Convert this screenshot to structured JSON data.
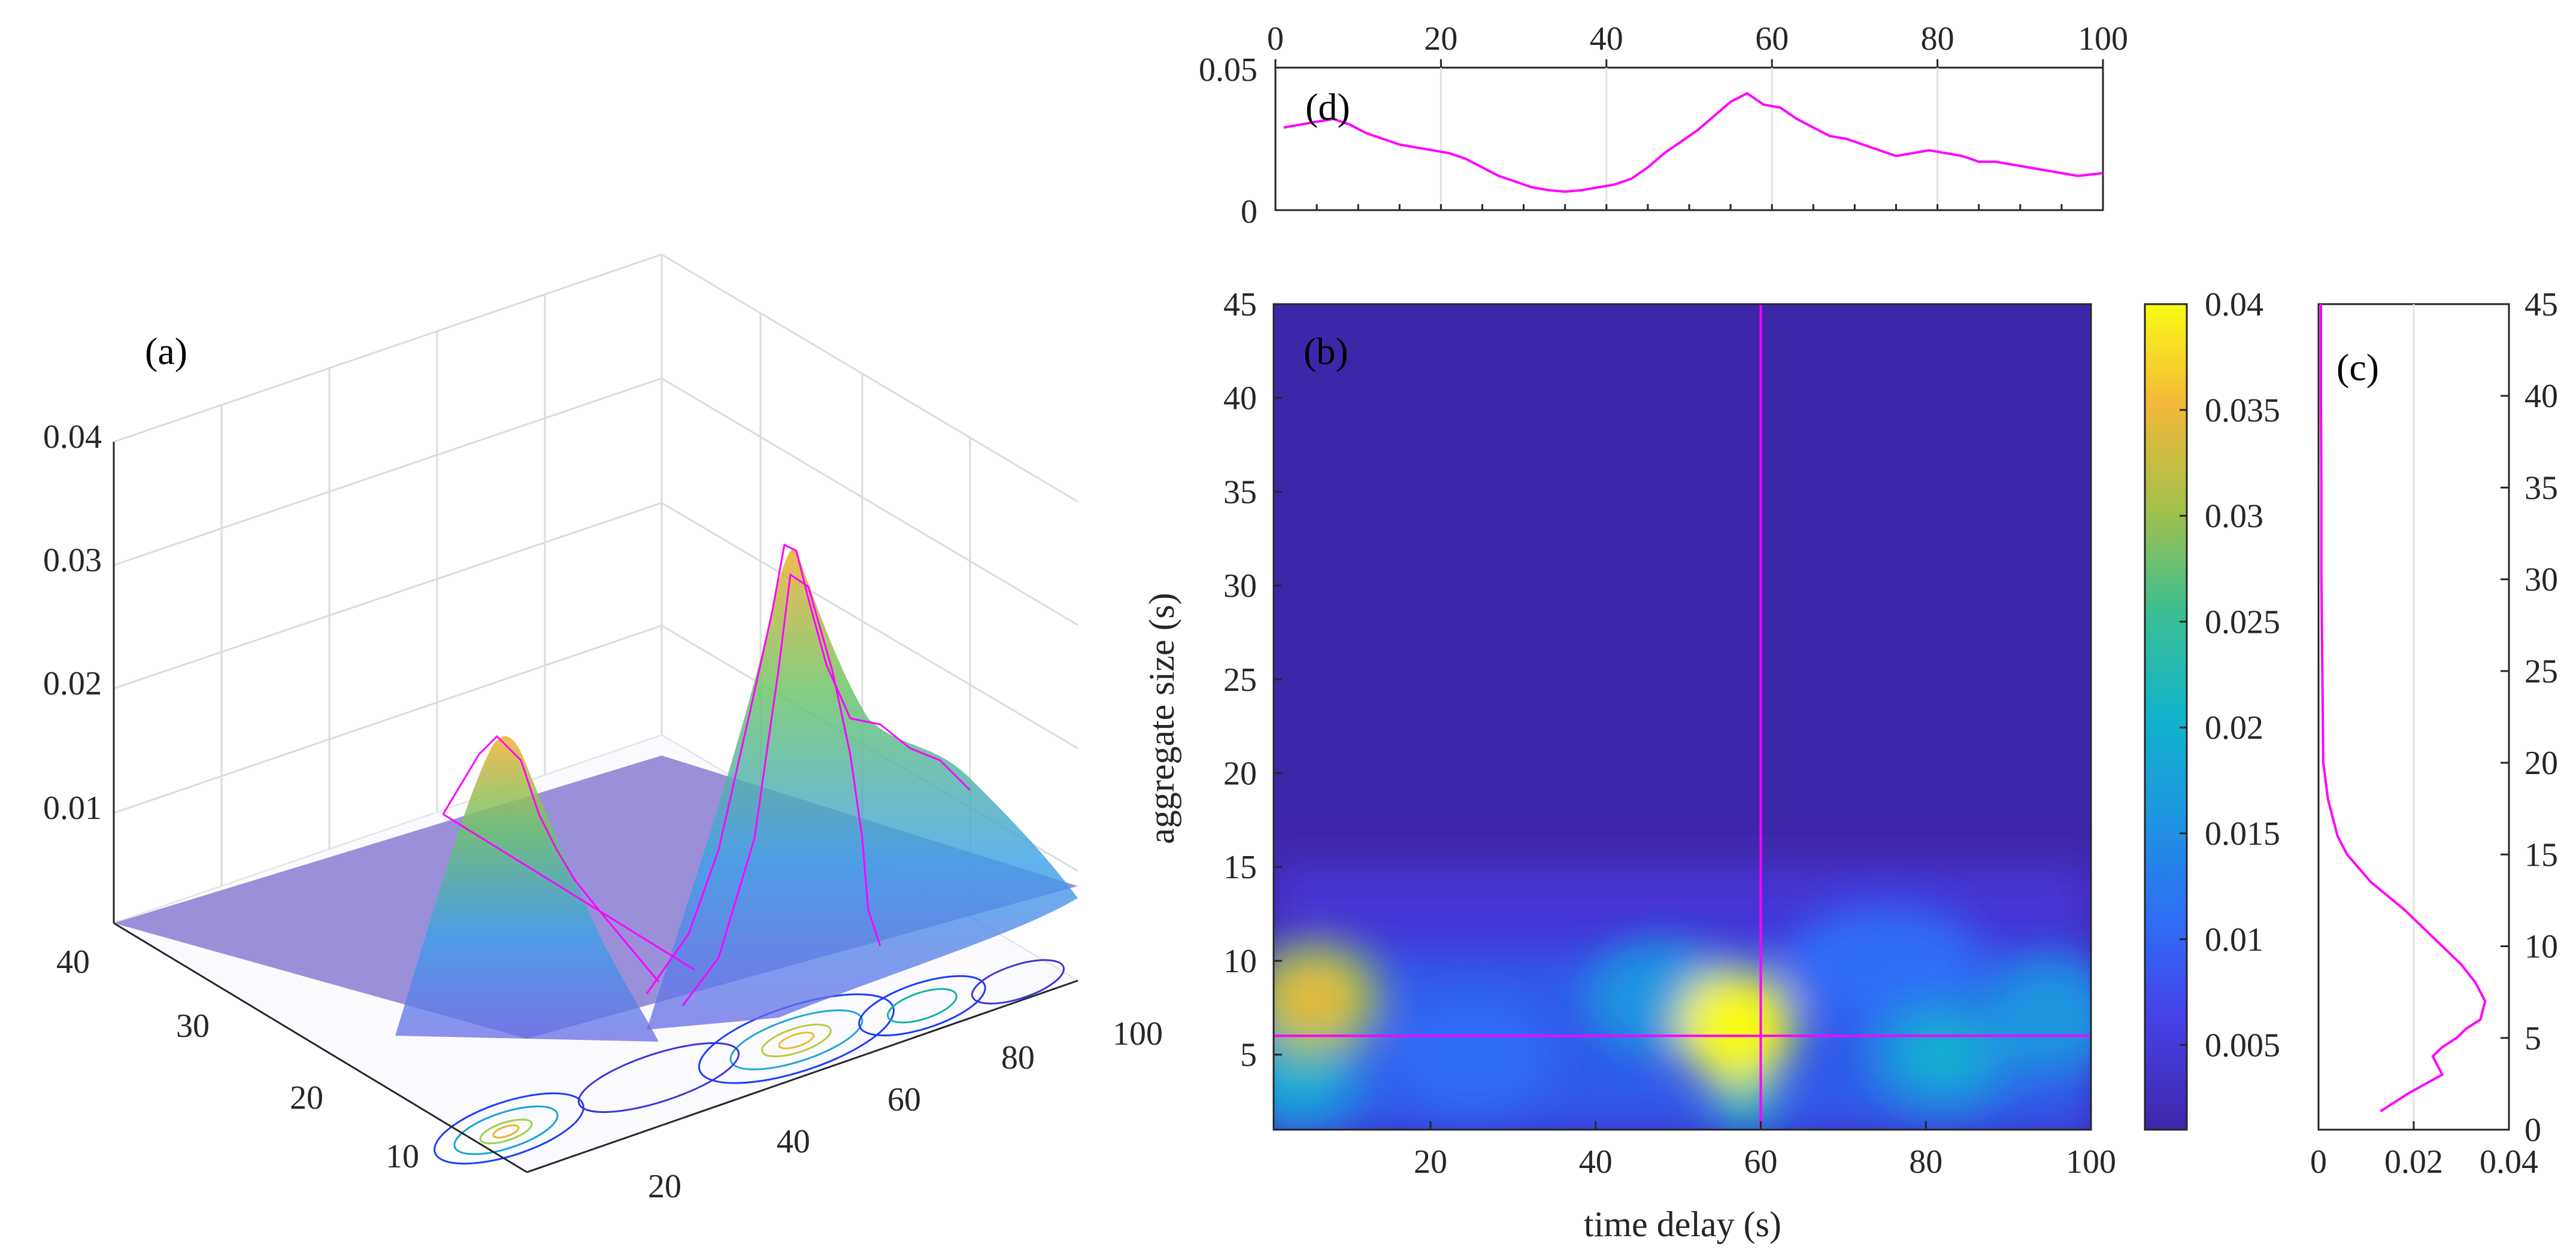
{
  "chart_data": [
    {
      "panel": "(a)",
      "type": "surface3d",
      "x_ticks": [
        "20",
        "40",
        "60",
        "80",
        "100"
      ],
      "y_ticks": [
        "10",
        "20",
        "30",
        "40"
      ],
      "z_ticks": [
        "0.01",
        "0.02",
        "0.03",
        "0.04"
      ],
      "peaks": [
        {
          "time_delay": 6,
          "aggregate_size": 7,
          "value": 0.035
        },
        {
          "time_delay": 57,
          "aggregate_size": 6,
          "value": 0.041
        }
      ]
    },
    {
      "panel": "(b)",
      "type": "heatmap",
      "xlabel": "time delay (s)",
      "ylabel": "aggregate size  (s)",
      "xlim": [
        1,
        100
      ],
      "ylim": [
        1,
        45
      ],
      "x_ticks": [
        "20",
        "40",
        "60",
        "80",
        "100"
      ],
      "y_ticks": [
        "5",
        "10",
        "15",
        "20",
        "25",
        "30",
        "35",
        "40",
        "45"
      ],
      "crosshair": {
        "time_delay": 60,
        "aggregate_size": 6
      },
      "hotspots": [
        {
          "time_delay": 6,
          "aggregate_size": 8,
          "value": 0.028,
          "sx": 8,
          "sy": 3
        },
        {
          "time_delay": 4,
          "aggregate_size": 4,
          "value": 0.014,
          "sx": 8,
          "sy": 3
        },
        {
          "time_delay": 57,
          "aggregate_size": 6.5,
          "value": 0.038,
          "sx": 7,
          "sy": 3
        },
        {
          "time_delay": 58,
          "aggregate_size": 3,
          "value": 0.02,
          "sx": 4,
          "sy": 2
        },
        {
          "time_delay": 48,
          "aggregate_size": 8,
          "value": 0.012,
          "sx": 9,
          "sy": 3
        },
        {
          "time_delay": 25,
          "aggregate_size": 5,
          "value": 0.009,
          "sx": 10,
          "sy": 3
        },
        {
          "time_delay": 82,
          "aggregate_size": 5,
          "value": 0.014,
          "sx": 9,
          "sy": 3
        },
        {
          "time_delay": 95,
          "aggregate_size": 7,
          "value": 0.011,
          "sx": 8,
          "sy": 3
        },
        {
          "time_delay": 75,
          "aggregate_size": 10,
          "value": 0.007,
          "sx": 12,
          "sy": 3
        }
      ]
    },
    {
      "panel": "(c)",
      "type": "line",
      "x_ticks": [
        "0",
        "0.02",
        "0.04"
      ],
      "y_ticks": [
        "0",
        "5",
        "10",
        "15",
        "20",
        "25",
        "30",
        "35",
        "40",
        "45"
      ],
      "xlim": [
        0,
        0.04
      ],
      "ylim": [
        0,
        45
      ],
      "x": [
        0.013,
        0.019,
        0.026,
        0.024,
        0.026,
        0.029,
        0.031,
        0.034,
        0.035,
        0.033,
        0.03,
        0.026,
        0.022,
        0.018,
        0.011,
        0.006,
        0.004,
        0.002,
        0.001,
        0.0008,
        0.0006,
        0.0006,
        0.0005,
        0.0005
      ],
      "y": [
        1,
        2,
        3,
        4,
        4.5,
        5,
        5.5,
        6,
        7,
        8,
        9,
        10,
        11,
        12,
        13.5,
        15,
        16,
        18,
        20,
        25,
        30,
        35,
        40,
        45
      ]
    },
    {
      "panel": "(d)",
      "type": "line",
      "x_ticks": [
        "0",
        "20",
        "40",
        "60",
        "80",
        "100"
      ],
      "y_ticks": [
        "0",
        "0.05"
      ],
      "xlim": [
        0,
        100
      ],
      "ylim": [
        0,
        0.05
      ],
      "x": [
        1,
        3,
        5,
        7,
        9,
        11,
        13,
        15,
        17,
        19,
        21,
        23,
        25,
        27,
        29,
        31,
        33,
        35,
        37,
        39,
        41,
        43,
        45,
        47,
        49,
        51,
        53,
        55,
        57,
        59,
        61,
        63,
        65,
        67,
        69,
        71,
        73,
        75,
        77,
        79,
        81,
        83,
        85,
        87,
        89,
        91,
        93,
        95,
        97,
        100
      ],
      "y": [
        0.029,
        0.03,
        0.031,
        0.032,
        0.03,
        0.027,
        0.025,
        0.023,
        0.022,
        0.021,
        0.02,
        0.018,
        0.015,
        0.012,
        0.01,
        0.008,
        0.007,
        0.0065,
        0.007,
        0.008,
        0.009,
        0.011,
        0.015,
        0.02,
        0.024,
        0.028,
        0.033,
        0.038,
        0.041,
        0.037,
        0.036,
        0.032,
        0.029,
        0.026,
        0.025,
        0.023,
        0.021,
        0.019,
        0.02,
        0.021,
        0.02,
        0.019,
        0.017,
        0.017,
        0.016,
        0.015,
        0.014,
        0.013,
        0.012,
        0.013
      ]
    }
  ],
  "colorbar": {
    "ticks": [
      "0.005",
      "0.01",
      "0.015",
      "0.02",
      "0.025",
      "0.03",
      "0.035",
      "0.04"
    ],
    "min": 0.001,
    "max": 0.04
  },
  "colors": {
    "magenta": "#ff00ff",
    "grid": "#d9d9d9",
    "axis": "#262626",
    "plane": "#7f72d0"
  }
}
